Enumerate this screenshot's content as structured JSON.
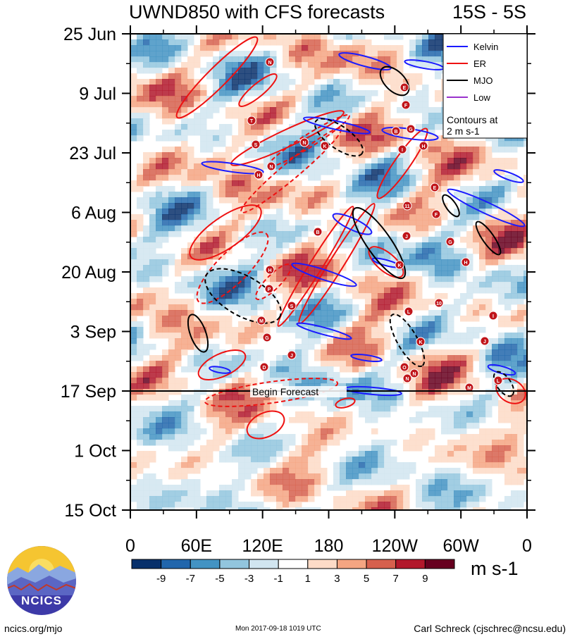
{
  "title": "UWND850 with CFS forecasts",
  "region": "15S - 5S",
  "chart_data": {
    "type": "heatmap",
    "variable": "UWND850",
    "x_ticks": [
      "0",
      "60E",
      "120E",
      "180",
      "120W",
      "60W",
      "0"
    ],
    "y_ticks": [
      "25 Jun",
      "9 Jul",
      "23 Jul",
      "6 Aug",
      "20 Aug",
      "3 Sep",
      "17 Sep",
      "1 Oct",
      "15 Oct"
    ],
    "forecast_label": "Begin Forecast",
    "forecast_start": "17 Sep",
    "colorbar": {
      "labels": [
        "-9",
        "-7",
        "-5",
        "-3",
        "-1",
        "1",
        "3",
        "5",
        "7",
        "9"
      ],
      "colors": [
        "#08306b",
        "#2166ac",
        "#4393c3",
        "#92c5de",
        "#d1e5f0",
        "#ffffff",
        "#fddbc7",
        "#f4a582",
        "#d6604d",
        "#b2182b",
        "#67001f"
      ],
      "units": "m s-1"
    },
    "legend": {
      "placement": "top-right",
      "entries": [
        {
          "name": "Kelvin",
          "color": "#1a1aff"
        },
        {
          "name": "ER",
          "color": "#ee1111"
        },
        {
          "name": "MJO",
          "color": "#000000"
        },
        {
          "name": "Low",
          "color": "#9933cc"
        }
      ],
      "note": "Contours at\n2 m s-1"
    },
    "storm_labels": [
      "N",
      "E",
      "F",
      "T",
      "B",
      "G",
      "S",
      "N",
      "K",
      "I",
      "H",
      "H",
      "N",
      "E",
      "11",
      "F",
      "B",
      "J",
      "G",
      "H",
      "H",
      "P",
      "K",
      "S",
      "10",
      "L",
      "M",
      "I",
      "G",
      "K",
      "J",
      "D",
      "J",
      "O",
      "N",
      "N",
      "M",
      "L"
    ]
  },
  "footer": {
    "url": "ncics.org/mjo",
    "timestamp": "Mon 2017-09-18 1019 UTC",
    "author": "Carl Schreck (cjschrec@ncsu.edu)",
    "logo_text": "NCICS"
  }
}
